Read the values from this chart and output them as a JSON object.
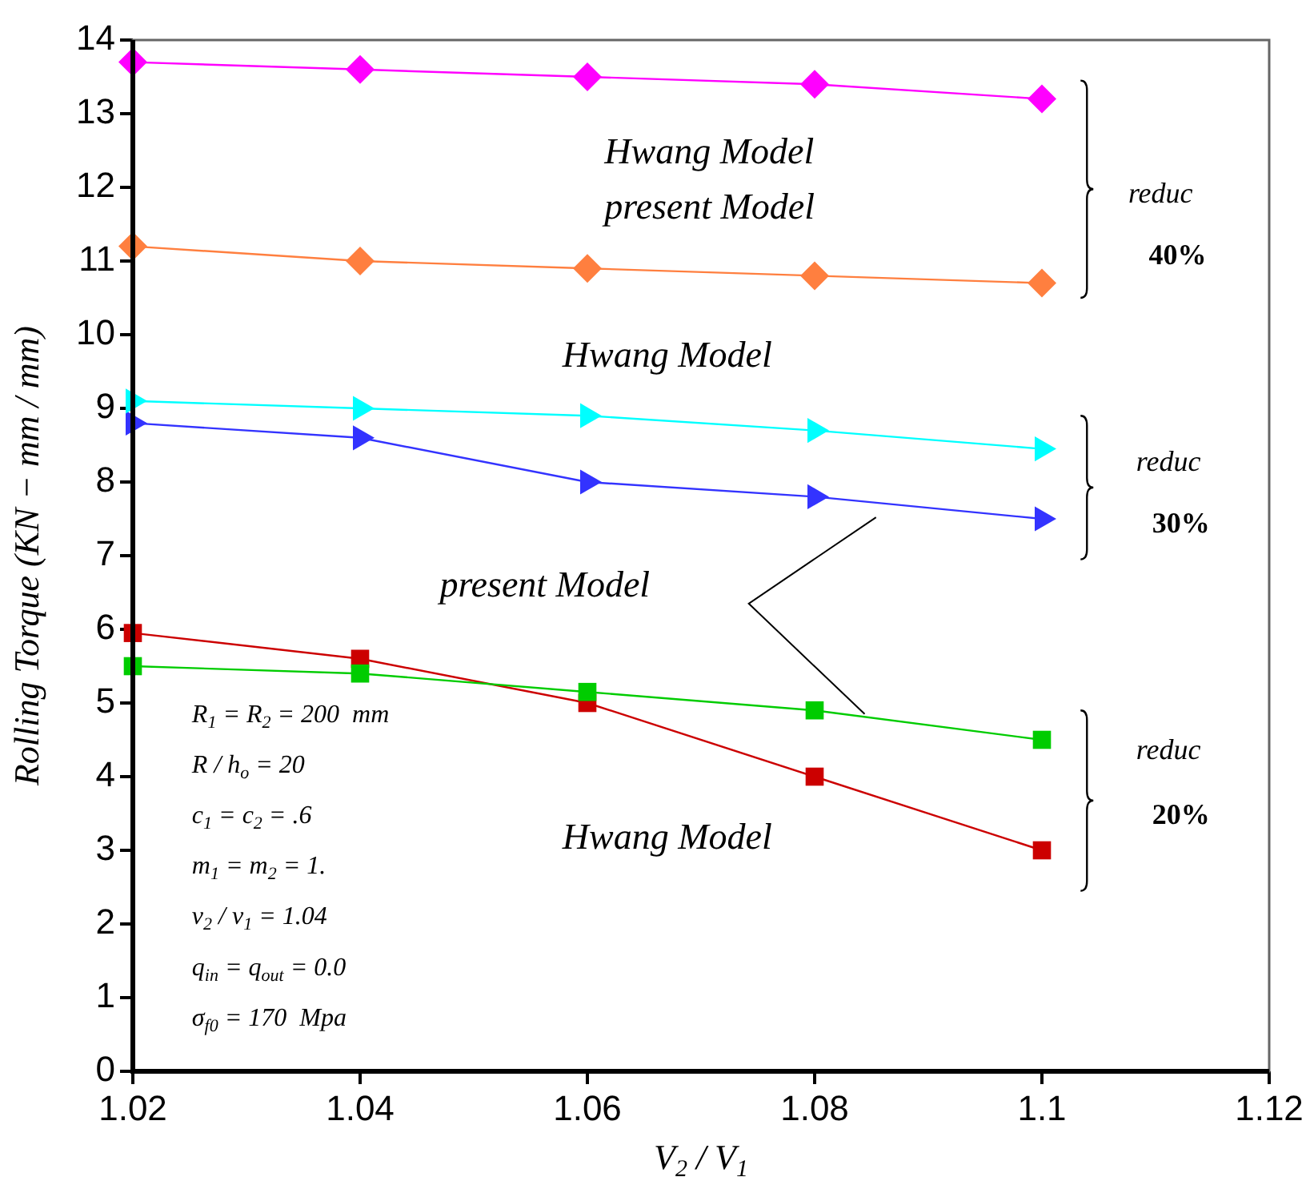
{
  "chart_data": {
    "type": "line",
    "xlabel": "V$_{2}$ / V$_{1}$",
    "ylabel": "Rolling Torque (KN − mm / mm)",
    "x": [
      1.02,
      1.04,
      1.06,
      1.08,
      1.1
    ],
    "series": [
      {
        "color": "#ff00ff",
        "marker": "diamond",
        "values": [
          13.7,
          13.6,
          13.5,
          13.4,
          13.2
        ]
      },
      {
        "color": "#ff7f3f",
        "marker": "diamond",
        "values": [
          11.2,
          11.0,
          10.9,
          10.8,
          10.7
        ]
      },
      {
        "color": "#00ffff",
        "marker": "triangle",
        "values": [
          9.1,
          9.0,
          8.9,
          8.7,
          8.45
        ]
      },
      {
        "color": "#3333ff",
        "marker": "triangle",
        "values": [
          8.8,
          8.6,
          8.0,
          7.8,
          7.5
        ]
      },
      {
        "color": "#00cc00",
        "marker": "square",
        "values": [
          5.5,
          5.4,
          5.15,
          4.9,
          4.5
        ]
      },
      {
        "color": "#cc0000",
        "marker": "square",
        "values": [
          5.95,
          5.6,
          5.0,
          4.0,
          3.0
        ]
      }
    ],
    "xlim": [
      1.02,
      1.12
    ],
    "xticks": [
      1.02,
      1.04,
      1.06,
      1.08,
      1.1,
      1.12
    ],
    "ylim": [
      0,
      14
    ],
    "yticks": [
      0,
      1,
      2,
      3,
      4,
      5,
      6,
      7,
      8,
      9,
      10,
      11,
      12,
      13,
      14
    ],
    "legend": false,
    "grid": false,
    "line_style": "solid",
    "annotations": [
      "Hwang Model",
      "present Model",
      "Hwang Model",
      "present Model",
      "Hwang Model",
      "reduc",
      "40%",
      "reduc",
      "30%",
      "reduc",
      "20%",
      "R$_{1}$ = R$_{2}$ = 200  mm",
      "R / h$_{o}$ = 20",
      "c$_{1}$ = c$_{2}$ = .6",
      "m$_{1}$ = m$_{2}$ = 1.",
      "v$_{2}$ / v$_{1}$ = 1.04",
      "q$_{in}$ = q$_{out}$ = 0.0",
      "σ$_{f0}$ = 170  Mpa"
    ]
  }
}
